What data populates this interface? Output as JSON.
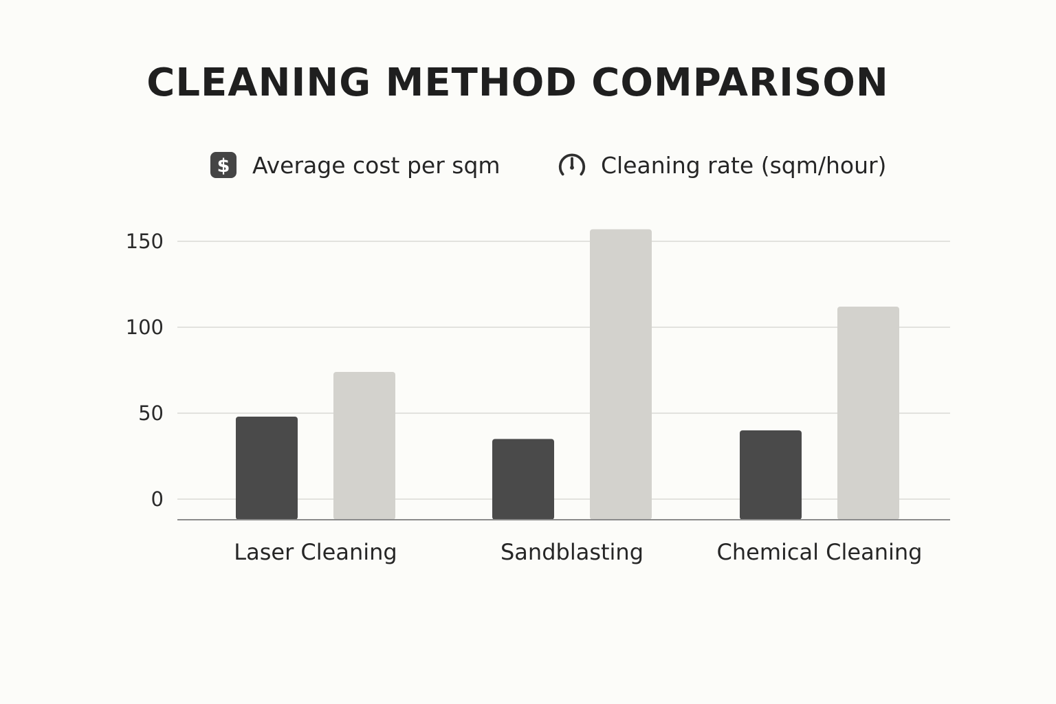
{
  "chart_data": {
    "type": "bar",
    "title": "CLEANING METHOD COMPARISON",
    "categories": [
      "Laser Cleaning",
      "Sandblasting",
      "Chemical Cleaning"
    ],
    "series": [
      {
        "name": "Average cost per sqm",
        "color": "#4a4a4a",
        "icon": "dollar-icon",
        "values": [
          48,
          35,
          40
        ]
      },
      {
        "name": "Cleaning rate (sqm/hour)",
        "color": "#d3d2cd",
        "icon": "gauge-icon",
        "values": [
          74,
          157,
          112
        ]
      }
    ],
    "yticks": [
      0,
      50,
      100,
      150
    ],
    "ylim": [
      -12,
      160
    ],
    "grid": true,
    "legend_position": "top-center",
    "xlabel": "",
    "ylabel": ""
  }
}
